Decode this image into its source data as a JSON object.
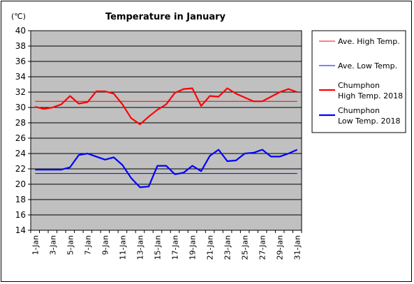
{
  "chart_data": {
    "type": "line",
    "title": "Temperature in January",
    "unit_label": "(℃)",
    "ylim": [
      14,
      40
    ],
    "yticks": [
      "14",
      "16",
      "18",
      "20",
      "22",
      "24",
      "26",
      "28",
      "30",
      "32",
      "34",
      "36",
      "38",
      "40"
    ],
    "categories": [
      "1-Jan",
      "2-Jan",
      "3-Jan",
      "4-Jan",
      "5-Jan",
      "6-Jan",
      "7-Jan",
      "8-Jan",
      "9-Jan",
      "10-Jan",
      "11-Jan",
      "12-Jan",
      "13-Jan",
      "14-Jan",
      "15-Jan",
      "16-Jan",
      "17-Jan",
      "18-Jan",
      "19-Jan",
      "20-Jan",
      "21-Jan",
      "22-Jan",
      "23-Jan",
      "24-Jan",
      "25-Jan",
      "26-Jan",
      "27-Jan",
      "28-Jan",
      "29-Jan",
      "30-Jan",
      "31-Jan"
    ],
    "xtick_labels": [
      "1-Jan",
      "3-Jan",
      "5-Jan",
      "7-Jan",
      "9-Jan",
      "11-Jan",
      "13-Jan",
      "15-Jan",
      "17-Jan",
      "19-Jan",
      "21-Jan",
      "23-Jan",
      "25-Jan",
      "27-Jan",
      "29-Jan",
      "31-Jan"
    ],
    "grid": true,
    "legend_position": "right",
    "series": [
      {
        "name": "Ave. High Temp.",
        "color": "#ff0000",
        "style": "thin",
        "values": [
          30.8,
          30.8,
          30.8,
          30.8,
          30.8,
          30.8,
          30.8,
          30.8,
          30.8,
          30.8,
          30.8,
          30.8,
          30.8,
          30.8,
          30.8,
          30.8,
          30.8,
          30.8,
          30.8,
          30.8,
          30.8,
          30.8,
          30.8,
          30.8,
          30.8,
          30.8,
          30.8,
          30.8,
          30.8,
          30.8,
          30.8
        ]
      },
      {
        "name": "Ave. Low Temp.",
        "color": "#0000ff",
        "style": "thin",
        "values": [
          21.4,
          21.4,
          21.4,
          21.4,
          21.4,
          21.4,
          21.4,
          21.4,
          21.4,
          21.4,
          21.4,
          21.4,
          21.4,
          21.4,
          21.4,
          21.4,
          21.4,
          21.4,
          21.4,
          21.4,
          21.4,
          21.4,
          21.4,
          21.4,
          21.4,
          21.4,
          21.4,
          21.4,
          21.4,
          21.4,
          21.4
        ]
      },
      {
        "name": "Chumphon High Temp. 2018",
        "legend_lines": [
          "Chumphon",
          "High Temp. 2018"
        ],
        "color": "#ff0000",
        "style": "thick",
        "values": [
          30.1,
          29.8,
          30.0,
          30.4,
          31.5,
          30.5,
          30.7,
          32.1,
          32.1,
          31.8,
          30.4,
          28.6,
          27.8,
          28.8,
          29.7,
          30.4,
          31.9,
          32.4,
          32.5,
          30.2,
          31.5,
          31.4,
          32.5,
          31.8,
          31.3,
          30.8,
          30.8,
          31.4,
          32.0,
          32.4,
          32.0
        ]
      },
      {
        "name": "Chumphon Low Temp. 2018",
        "legend_lines": [
          "Chumphon",
          "Low Temp. 2018"
        ],
        "color": "#0000ff",
        "style": "thick",
        "values": [
          21.9,
          21.9,
          21.9,
          21.9,
          22.2,
          23.8,
          24.0,
          23.6,
          23.2,
          23.5,
          22.5,
          20.8,
          19.6,
          19.7,
          22.4,
          22.4,
          21.3,
          21.5,
          22.4,
          21.7,
          23.7,
          24.5,
          23.0,
          23.1,
          24.0,
          24.1,
          24.5,
          23.6,
          23.6,
          24.0,
          24.5
        ]
      }
    ]
  }
}
